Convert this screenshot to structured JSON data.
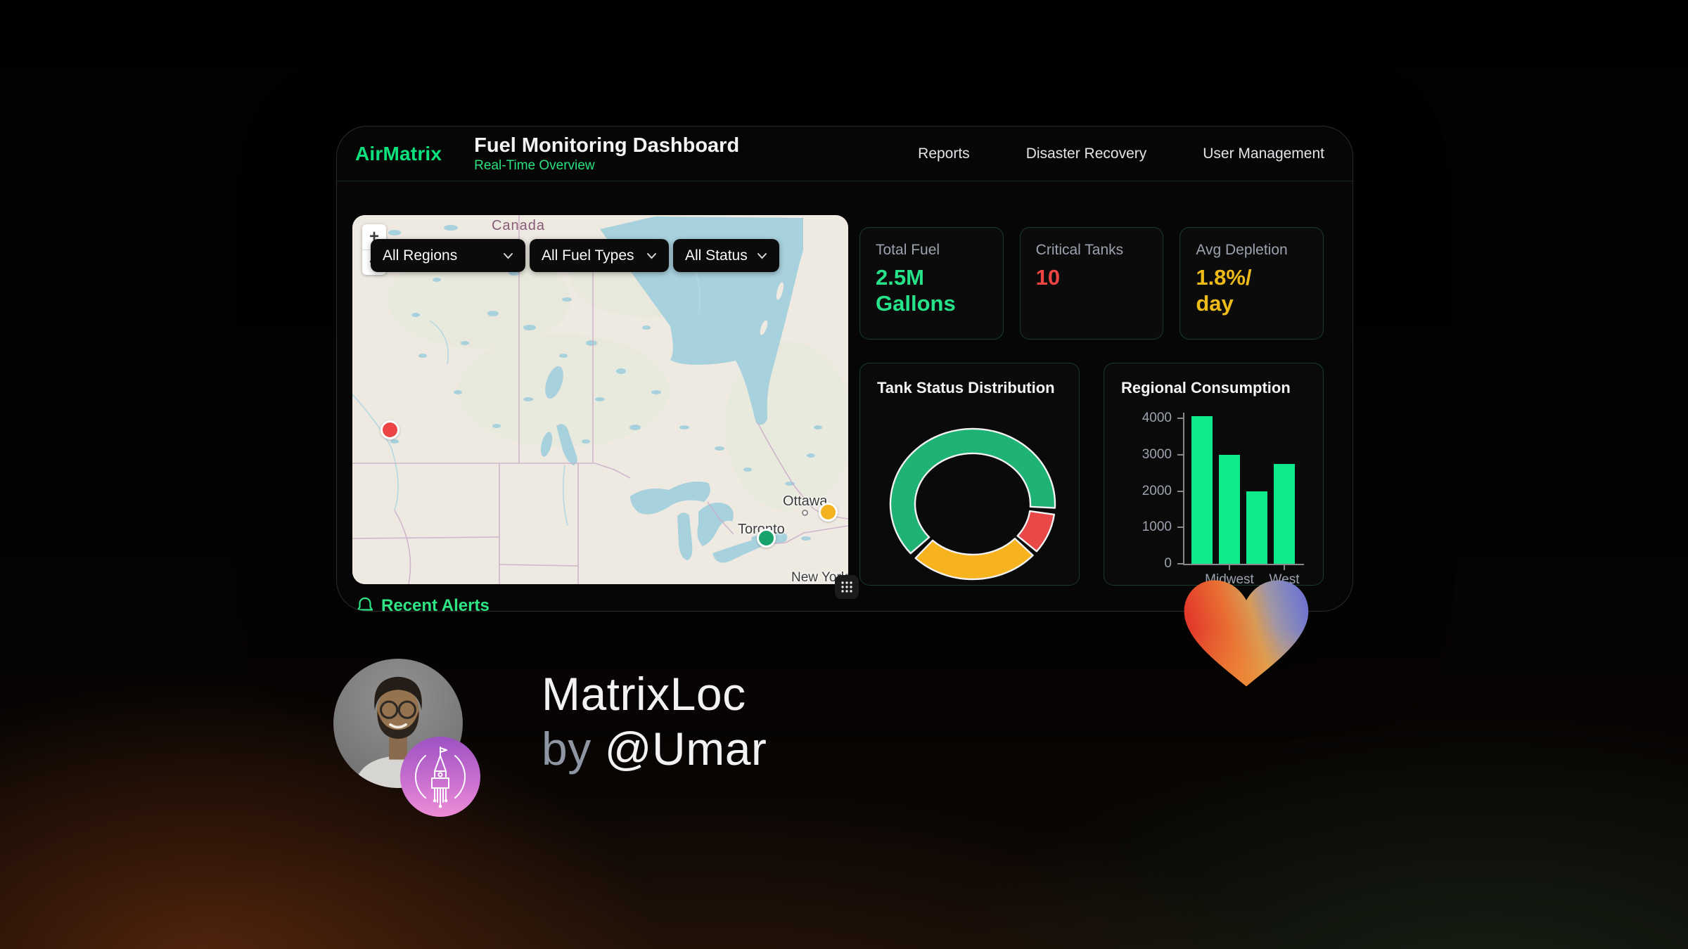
{
  "header": {
    "brand": "AirMatrix",
    "title": "Fuel Monitoring Dashboard",
    "subtitle": "Real-Time Overview",
    "nav": [
      "Reports",
      "Disaster Recovery",
      "User Management"
    ]
  },
  "map": {
    "filters": [
      "All Regions",
      "All Fuel Types",
      "All Status"
    ],
    "zoom_in": "+",
    "zoom_out": "−",
    "country_label": "Canada",
    "cities": [
      "Ottawa",
      "Toronto",
      "New York"
    ],
    "markers": [
      {
        "status_color": "#ed4545",
        "x": 53,
        "y": 305
      },
      {
        "status_color": "#f2b31f",
        "x": 676,
        "y": 422
      },
      {
        "status_color": "#17a36b",
        "x": 588,
        "y": 459
      }
    ]
  },
  "stats": [
    {
      "label": "Total Fuel",
      "value": "2.5M\nGallons",
      "color": "#26e289"
    },
    {
      "label": "Critical Tanks",
      "value": "10",
      "color": "#ee4444"
    },
    {
      "label": "Avg Depletion",
      "value": "1.8%/\nday",
      "color": "#eebb18"
    }
  ],
  "alerts": {
    "title": "Recent Alerts"
  },
  "promo": {
    "app_name": "MatrixLoc",
    "byline_prefix": "by",
    "author": "@Umar"
  },
  "chart_data": [
    {
      "type": "pie",
      "variant": "donut",
      "title": "Tank Status Distribution",
      "legend": false,
      "segments": [
        {
          "label": "green (ok)",
          "color": "#1eb274",
          "approx_percent": 62,
          "start_deg": 229,
          "end_deg": 453
        },
        {
          "label": "red (critical)",
          "color": "#e94848",
          "approx_percent": 9,
          "start_deg": 458,
          "end_deg": 489
        },
        {
          "label": "yellow (warning)",
          "color": "#f6b31d",
          "approx_percent": 26,
          "start_deg": 493,
          "end_deg": 584
        }
      ]
    },
    {
      "type": "bar",
      "title": "Regional Consumption",
      "values": [
        4050,
        3000,
        2000,
        2750
      ],
      "x_tick_labels": [
        "",
        "Midwest",
        "",
        "West"
      ],
      "yticks": [
        0,
        1000,
        2000,
        3000,
        4000
      ],
      "ylim": [
        0,
        4000
      ],
      "xlabel": "",
      "ylabel": "",
      "grid": false,
      "bar_color": "#10e88c",
      "axis_color": "#85888d"
    }
  ]
}
